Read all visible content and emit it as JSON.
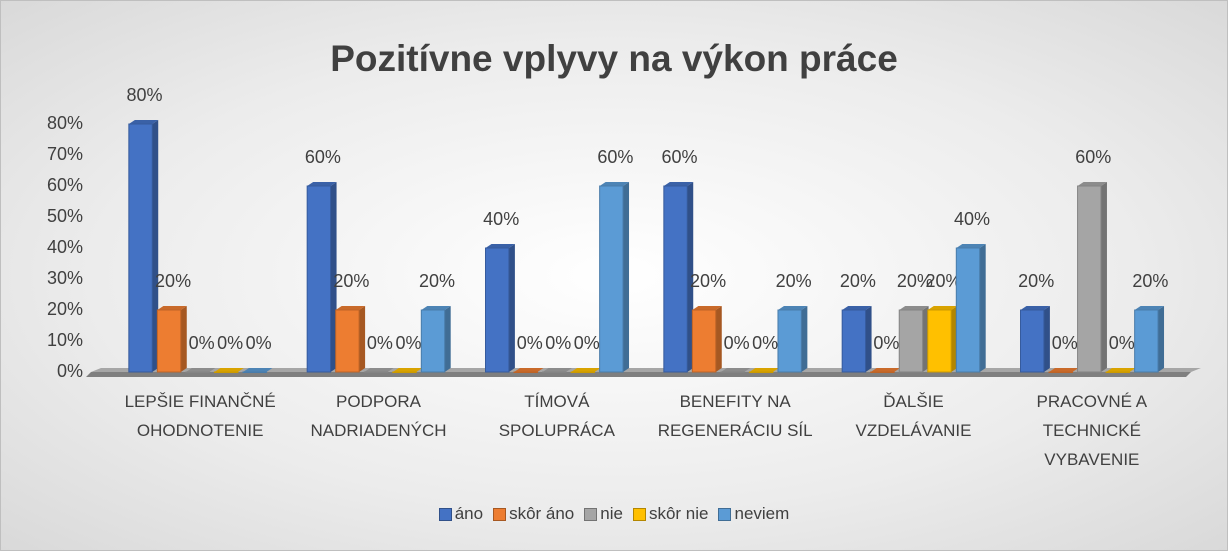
{
  "chart_data": {
    "type": "bar",
    "title": "Pozitívne vplyvy na výkon práce",
    "categories": [
      "LEPŠIE FINANČNÉ OHODNOTENIE",
      "PODPORA NADRIADENÝCH",
      "TÍMOVÁ SPOLUPRÁCA",
      "BENEFITY NA REGENERÁCIU SÍL",
      "ĎALŠIE VZDELÁVANIE",
      "PRACOVNÉ A TECHNICKÉ VYBAVENIE"
    ],
    "series": [
      {
        "name": "áno",
        "color": "#4472c4",
        "values": [
          80,
          60,
          40,
          60,
          20,
          20
        ],
        "value_labels": [
          "80%",
          "60%",
          "40%",
          "60%",
          "20%",
          "20%"
        ]
      },
      {
        "name": "skôr áno",
        "color": "#ed7d31",
        "values": [
          20,
          20,
          0,
          20,
          0,
          0
        ],
        "value_labels": [
          "20%",
          "20%",
          "0%",
          "20%",
          "0%",
          "0%"
        ]
      },
      {
        "name": "nie",
        "color": "#a5a5a5",
        "values": [
          0,
          0,
          0,
          0,
          20,
          60
        ],
        "value_labels": [
          "0%",
          "0%",
          "0%",
          "0%",
          "20%",
          "60%"
        ]
      },
      {
        "name": "skôr nie",
        "color": "#ffc000",
        "values": [
          0,
          0,
          0,
          0,
          20,
          0
        ],
        "value_labels": [
          "0%",
          "0%",
          "0%",
          "0%",
          "20%",
          "0%"
        ]
      },
      {
        "name": "neviem",
        "color": "#5b9bd5",
        "values": [
          0,
          20,
          60,
          20,
          40,
          20
        ],
        "value_labels": [
          "0%",
          "20%",
          "60%",
          "20%",
          "40%",
          "20%"
        ]
      }
    ],
    "ylim": [
      0,
      80
    ],
    "yticks": [
      {
        "value": 0,
        "label": "0%"
      },
      {
        "value": 10,
        "label": "10%"
      },
      {
        "value": 20,
        "label": "20%"
      },
      {
        "value": 30,
        "label": "30%"
      },
      {
        "value": 40,
        "label": "40%"
      },
      {
        "value": 50,
        "label": "50%"
      },
      {
        "value": 60,
        "label": "60%"
      },
      {
        "value": 70,
        "label": "70%"
      },
      {
        "value": 80,
        "label": "80%"
      }
    ],
    "legend": "bottom"
  }
}
